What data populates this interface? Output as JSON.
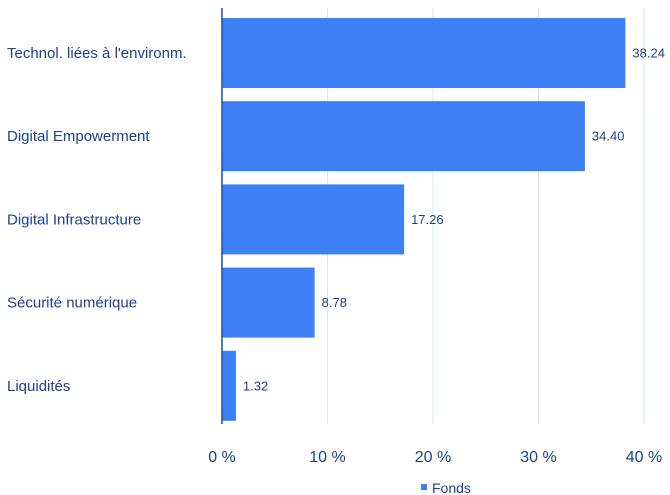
{
  "chart_data": {
    "type": "bar",
    "orientation": "horizontal",
    "categories": [
      "Technol. liées à l'environm.",
      "Digital Empowerment",
      "Digital Infrastructure",
      "Sécurité numérique",
      "Liquidités"
    ],
    "series": [
      {
        "name": "Fonds",
        "values": [
          38.24,
          34.4,
          17.26,
          8.78,
          1.32
        ],
        "value_labels": [
          "38.24",
          "34.40",
          "17.26",
          "8.78",
          "1.32"
        ]
      }
    ],
    "x_ticks": [
      "0 %",
      "10 %",
      "20 %",
      "30 %",
      "40 %"
    ],
    "xlim": [
      0,
      40
    ],
    "grid": true,
    "legend": "bottom-center",
    "colors": {
      "bar": "#3d7ff5",
      "text": "#1f3f8f",
      "grid": "#d6e6f5"
    }
  }
}
